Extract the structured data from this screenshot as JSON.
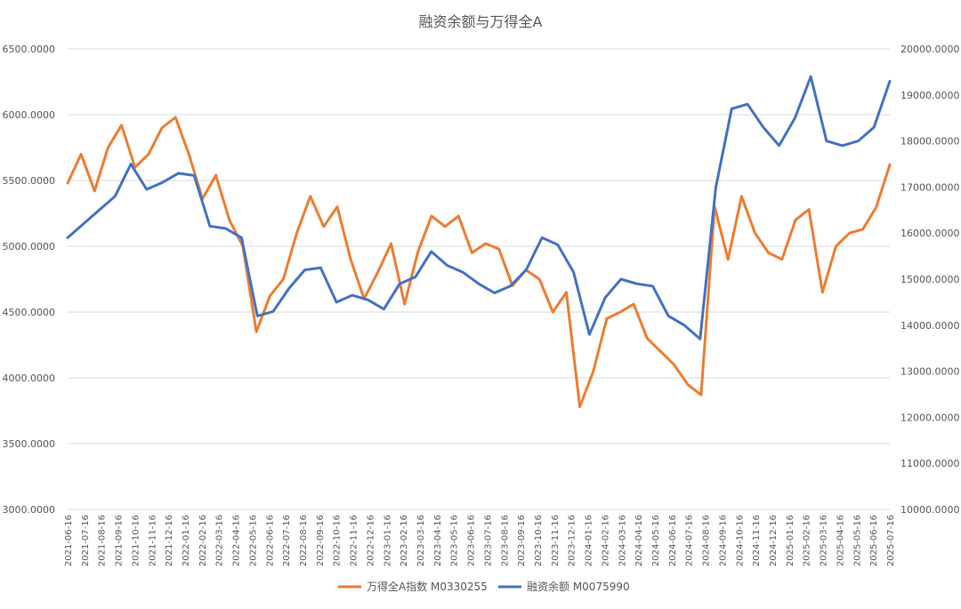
{
  "chart_data": {
    "type": "line",
    "title": "融资余额与万得全A",
    "y_left": {
      "min": 3000,
      "max": 6500,
      "ticks": [
        "3000.0000",
        "3500.0000",
        "4000.0000",
        "4500.0000",
        "5000.0000",
        "5500.0000",
        "6000.0000",
        "6500.0000"
      ]
    },
    "y_right": {
      "min": 10000,
      "max": 20000,
      "ticks": [
        "10000.0000",
        "11000.0000",
        "12000.0000",
        "13000.0000",
        "14000.0000",
        "15000.0000",
        "16000.0000",
        "17000.0000",
        "18000.0000",
        "19000.0000",
        "20000.0000"
      ]
    },
    "x_ticks": [
      "2021-06-16",
      "2021-07-16",
      "2021-08-16",
      "2021-09-16",
      "2021-10-16",
      "2021-11-16",
      "2021-12-16",
      "2022-01-16",
      "2022-02-16",
      "2022-03-16",
      "2022-04-16",
      "2022-05-16",
      "2022-06-16",
      "2022-07-16",
      "2022-08-16",
      "2022-09-16",
      "2022-10-16",
      "2022-11-16",
      "2022-12-16",
      "2023-01-16",
      "2023-02-16",
      "2023-03-16",
      "2023-04-16",
      "2023-05-16",
      "2023-06-16",
      "2023-07-16",
      "2023-08-16",
      "2023-09-16",
      "2023-10-16",
      "2023-11-16",
      "2023-12-16",
      "2024-01-16",
      "2024-02-16",
      "2024-03-16",
      "2024-04-16",
      "2024-05-16",
      "2024-06-16",
      "2024-07-16",
      "2024-08-16",
      "2024-09-16",
      "2024-10-16",
      "2024-11-16",
      "2024-12-16",
      "2025-01-16",
      "2025-02-16",
      "2025-03-16",
      "2025-04-16",
      "2025-05-16",
      "2025-06-16",
      "2025-07-16"
    ],
    "grid": true,
    "legend_position": "bottom",
    "series": [
      {
        "name": "万得全A指数 M0330255",
        "axis": "left",
        "color": "#ED7D31",
        "values": [
          5480,
          5700,
          5420,
          5750,
          5920,
          5600,
          5700,
          5900,
          5980,
          5700,
          5360,
          5540,
          5200,
          5000,
          4350,
          4620,
          4750,
          5100,
          5380,
          5150,
          5300,
          4900,
          4600,
          4800,
          5020,
          4560,
          4960,
          5230,
          5150,
          5230,
          4950,
          5020,
          4980,
          4700,
          4820,
          4750,
          4500,
          4650,
          3780,
          4050,
          4450,
          4500,
          4560,
          4300,
          4200,
          4100,
          3950,
          3870,
          5300,
          4900,
          5380,
          5100,
          4950,
          4900,
          5200,
          5280,
          4650,
          5000,
          5100,
          5130,
          5300,
          5620
        ]
      },
      {
        "name": "融资余额 M0075990",
        "axis": "right",
        "color": "#4472C4",
        "values": [
          15900,
          16200,
          16500,
          16800,
          17500,
          16950,
          17100,
          17300,
          17250,
          16150,
          16100,
          15900,
          14200,
          14300,
          14800,
          15200,
          15250,
          14500,
          14650,
          14550,
          14350,
          14900,
          15050,
          15600,
          15300,
          15150,
          14900,
          14700,
          14850,
          15200,
          15900,
          15750,
          15150,
          13800,
          14600,
          15000,
          14900,
          14850,
          14200,
          14000,
          13700,
          17000,
          18700,
          18800,
          18300,
          17900,
          18500,
          19400,
          18000,
          17900,
          18000,
          18300,
          19300
        ]
      }
    ]
  }
}
